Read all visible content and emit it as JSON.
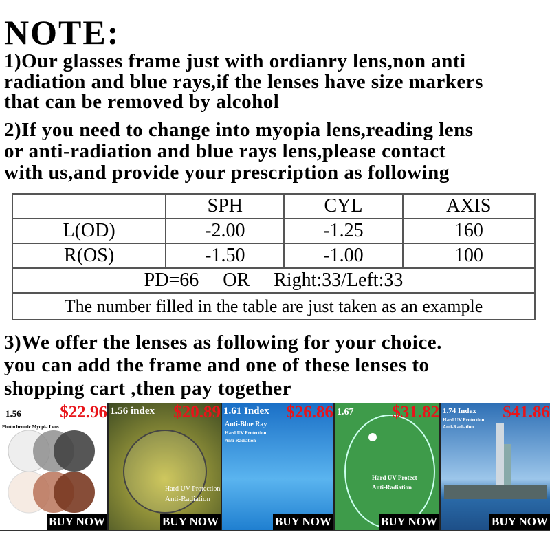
{
  "title": "NOTE:",
  "point1": [
    "1)Our glasses frame just with ordianry lens,non anti",
    "radiation and blue rays,if the lenses have size markers",
    "that can be removed by alcohol"
  ],
  "point2": [
    "2)If you need to change into myopia lens,reading lens",
    "or anti-radiation and blue rays lens,please contact",
    "with us,and provide your prescription as following"
  ],
  "table": {
    "headers": [
      "",
      "SPH",
      "CYL",
      "AXIS"
    ],
    "rows": [
      [
        "L(OD)",
        "-2.00",
        "-1.25",
        "160"
      ],
      [
        "R(OS)",
        "-1.50",
        "-1.00",
        "100"
      ]
    ],
    "pd": "PD=66     OR     Right:33/Left:33",
    "note": "The number filled in the table are just taken as an example"
  },
  "point3": [
    "3)We offer the lenses as following for your choice.",
    "you can add the frame and one of these lenses to",
    "shopping cart ,then pay together"
  ],
  "products": [
    {
      "index": "1.56",
      "price": "$22.96",
      "sub": "Photochromic Myopia Lens",
      "buy": "BUY NOW"
    },
    {
      "index": "1.56 index",
      "price": "$20.89",
      "features": [
        "Hard UV Protection",
        "Anti-Radiation"
      ],
      "buy": "BUY NOW"
    },
    {
      "index": "1.61 Index",
      "price": "$26.86",
      "features": [
        "Anti-Blue Ray",
        "Hard UV Protection",
        "Anti-Radiation"
      ],
      "buy": "BUY NOW"
    },
    {
      "index": "1.67",
      "price": "$31.82",
      "features": [
        "Hard UV Protect",
        "Anti-Radiation"
      ],
      "buy": "BUY NOW"
    },
    {
      "index": "1.74 Index",
      "price": "$41.86",
      "features": [
        "Hard UV Protection",
        "Anti-Radiation"
      ],
      "buy": "BUY NOW"
    }
  ],
  "colors": {
    "price": "#e8141a",
    "green": "#3e9b4a",
    "blue": "#1f7fd0"
  }
}
